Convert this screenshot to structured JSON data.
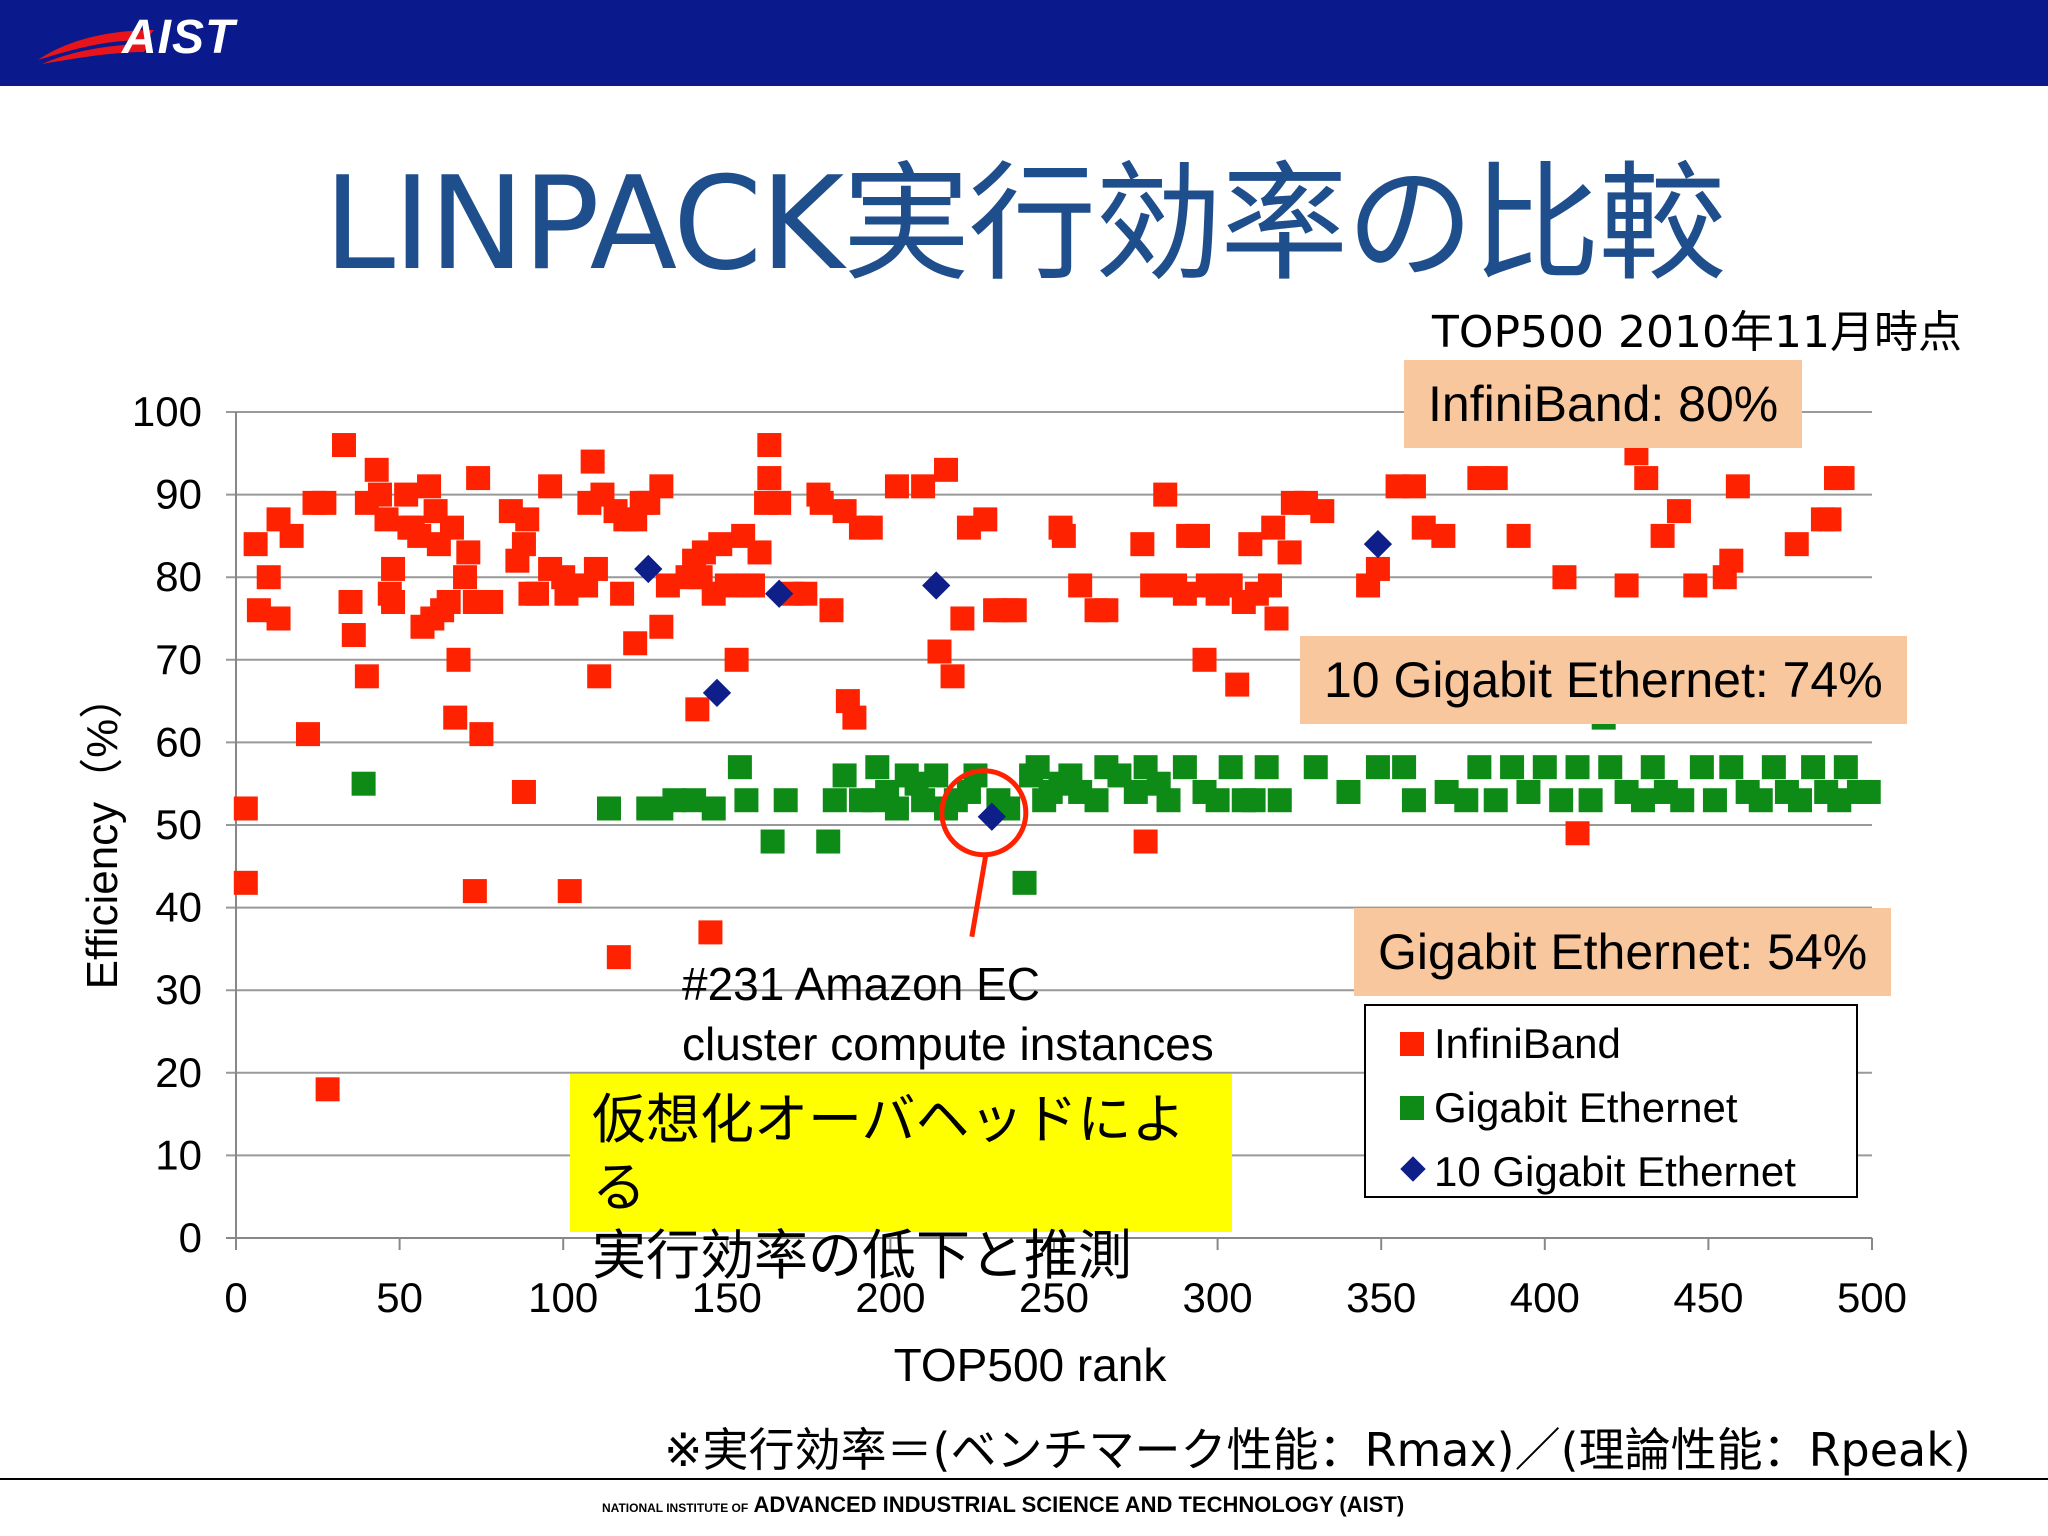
{
  "header": {
    "logo_text": "AIST"
  },
  "slide": {
    "title": "LINPACK実行効率の比較",
    "subtitle": "TOP500 2010年11月時点",
    "callouts": {
      "infiniband": "InfiniBand: 80%",
      "tengig": "10 Gigabit Ethernet: 74%",
      "gige": "Gigabit Ethernet: 54%"
    },
    "amazon_note": [
      "#231 Amazon EC",
      "cluster compute instances"
    ],
    "highlight": [
      "仮想化オーバヘッドによる",
      "実行効率の低下と推測"
    ],
    "footnote": "※実行効率＝(ベンチマーク性能：Rmax)／(理論性能：Rpeak)",
    "footer_small": "NATIONAL INSTITUTE OF",
    "footer_main": "ADVANCED INDUSTRIAL SCIENCE AND TECHNOLOGY (AIST)"
  },
  "colors": {
    "infiniband": "#ff2200",
    "gige": "#0e8a16",
    "tengig": "#0e1f8a",
    "header": "#0a1a8c",
    "callout": "#f9c79d",
    "highlight": "#ffff00"
  },
  "chart_data": {
    "type": "scatter",
    "xlabel": "TOP500 rank",
    "ylabel": "Efficiency（%）",
    "xlim": [
      0,
      500
    ],
    "ylim": [
      0,
      100
    ],
    "xticks": [
      0,
      50,
      100,
      150,
      200,
      250,
      300,
      350,
      400,
      450,
      500
    ],
    "yticks": [
      0,
      10,
      20,
      30,
      40,
      50,
      60,
      70,
      80,
      90,
      100
    ],
    "grid": "horizontal",
    "legend_position": "bottom-right",
    "series": [
      {
        "name": "InfiniBand",
        "marker": "square",
        "points": [
          [
            3,
            52
          ],
          [
            3,
            43
          ],
          [
            6,
            84
          ],
          [
            7,
            76
          ],
          [
            10,
            80
          ],
          [
            13,
            87
          ],
          [
            13,
            75
          ],
          [
            17,
            85
          ],
          [
            22,
            61
          ],
          [
            24,
            89
          ],
          [
            27,
            89
          ],
          [
            28,
            18
          ],
          [
            33,
            96
          ],
          [
            35,
            77
          ],
          [
            36,
            73
          ],
          [
            40,
            68
          ],
          [
            40,
            89
          ],
          [
            43,
            93
          ],
          [
            44,
            90
          ],
          [
            46,
            87
          ],
          [
            47,
            78
          ],
          [
            48,
            81
          ],
          [
            48,
            77
          ],
          [
            52,
            90
          ],
          [
            53,
            86
          ],
          [
            54,
            86
          ],
          [
            56,
            85
          ],
          [
            57,
            74
          ],
          [
            59,
            91
          ],
          [
            60,
            75
          ],
          [
            61,
            88
          ],
          [
            62,
            84
          ],
          [
            63,
            76
          ],
          [
            65,
            77
          ],
          [
            66,
            86
          ],
          [
            67,
            63
          ],
          [
            68,
            70
          ],
          [
            70,
            80
          ],
          [
            71,
            83
          ],
          [
            73,
            42
          ],
          [
            73,
            77
          ],
          [
            74,
            92
          ],
          [
            75,
            61
          ],
          [
            78,
            77
          ],
          [
            84,
            88
          ],
          [
            86,
            82
          ],
          [
            88,
            84
          ],
          [
            88,
            54
          ],
          [
            89,
            87
          ],
          [
            90,
            78
          ],
          [
            92,
            78
          ],
          [
            96,
            81
          ],
          [
            96,
            91
          ],
          [
            100,
            80
          ],
          [
            101,
            78
          ],
          [
            102,
            42
          ],
          [
            103,
            79
          ],
          [
            107,
            79
          ],
          [
            108,
            89
          ],
          [
            109,
            94
          ],
          [
            110,
            81
          ],
          [
            111,
            68
          ],
          [
            112,
            90
          ],
          [
            116,
            88
          ],
          [
            117,
            34
          ],
          [
            118,
            78
          ],
          [
            119,
            87
          ],
          [
            122,
            72
          ],
          [
            122,
            87
          ],
          [
            124,
            89
          ],
          [
            126,
            89
          ],
          [
            130,
            74
          ],
          [
            130,
            91
          ],
          [
            132,
            79
          ],
          [
            138,
            80
          ],
          [
            140,
            82
          ],
          [
            141,
            64
          ],
          [
            142,
            80
          ],
          [
            143,
            83
          ],
          [
            145,
            37
          ],
          [
            146,
            78
          ],
          [
            148,
            84
          ],
          [
            150,
            79
          ],
          [
            153,
            70
          ],
          [
            155,
            85
          ],
          [
            156,
            79
          ],
          [
            158,
            79
          ],
          [
            160,
            83
          ],
          [
            162,
            89
          ],
          [
            163,
            92
          ],
          [
            163,
            96
          ],
          [
            166,
            89
          ],
          [
            170,
            78
          ],
          [
            174,
            78
          ],
          [
            178,
            90
          ],
          [
            179,
            89
          ],
          [
            182,
            76
          ],
          [
            186,
            88
          ],
          [
            187,
            65
          ],
          [
            189,
            63
          ],
          [
            191,
            86
          ],
          [
            194,
            86
          ],
          [
            202,
            91
          ],
          [
            210,
            91
          ],
          [
            215,
            71
          ],
          [
            217,
            93
          ],
          [
            219,
            68
          ],
          [
            222,
            75
          ],
          [
            224,
            86
          ],
          [
            229,
            87
          ],
          [
            232,
            76
          ],
          [
            236,
            76
          ],
          [
            238,
            76
          ],
          [
            252,
            86
          ],
          [
            253,
            85
          ],
          [
            258,
            79
          ],
          [
            263,
            76
          ],
          [
            266,
            76
          ],
          [
            277,
            84
          ],
          [
            278,
            48
          ],
          [
            280,
            79
          ],
          [
            284,
            90
          ],
          [
            287,
            79
          ],
          [
            290,
            78
          ],
          [
            291,
            85
          ],
          [
            294,
            85
          ],
          [
            296,
            70
          ],
          [
            297,
            79
          ],
          [
            300,
            78
          ],
          [
            303,
            79
          ],
          [
            304,
            79
          ],
          [
            306,
            67
          ],
          [
            308,
            77
          ],
          [
            310,
            84
          ],
          [
            312,
            78
          ],
          [
            316,
            79
          ],
          [
            317,
            86
          ],
          [
            318,
            75
          ],
          [
            322,
            83
          ],
          [
            323,
            89
          ],
          [
            327,
            89
          ],
          [
            332,
            88
          ],
          [
            346,
            79
          ],
          [
            349,
            81
          ],
          [
            355,
            91
          ],
          [
            360,
            91
          ],
          [
            363,
            86
          ],
          [
            369,
            85
          ],
          [
            380,
            92
          ],
          [
            385,
            92
          ],
          [
            392,
            85
          ],
          [
            406,
            80
          ],
          [
            410,
            49
          ],
          [
            425,
            79
          ],
          [
            428,
            95
          ],
          [
            431,
            92
          ],
          [
            436,
            85
          ],
          [
            441,
            88
          ],
          [
            446,
            79
          ],
          [
            455,
            80
          ],
          [
            457,
            82
          ],
          [
            459,
            91
          ],
          [
            477,
            84
          ],
          [
            485,
            87
          ],
          [
            487,
            87
          ],
          [
            489,
            92
          ],
          [
            491,
            92
          ]
        ]
      },
      {
        "name": "Gigabit Ethernet",
        "marker": "square",
        "points": [
          [
            39,
            55
          ],
          [
            114,
            52
          ],
          [
            126,
            52
          ],
          [
            130,
            52
          ],
          [
            134,
            53
          ],
          [
            140,
            53
          ],
          [
            146,
            52
          ],
          [
            154,
            57
          ],
          [
            156,
            53
          ],
          [
            164,
            48
          ],
          [
            168,
            53
          ],
          [
            181,
            48
          ],
          [
            183,
            53
          ],
          [
            186,
            56
          ],
          [
            191,
            53
          ],
          [
            195,
            53
          ],
          [
            196,
            57
          ],
          [
            199,
            54
          ],
          [
            202,
            52
          ],
          [
            205,
            56
          ],
          [
            208,
            55
          ],
          [
            210,
            53
          ],
          [
            214,
            56
          ],
          [
            217,
            52
          ],
          [
            220,
            53
          ],
          [
            224,
            54
          ],
          [
            226,
            56
          ],
          [
            233,
            53
          ],
          [
            234,
            52
          ],
          [
            236,
            52
          ],
          [
            241,
            43
          ],
          [
            243,
            56
          ],
          [
            245,
            57
          ],
          [
            247,
            53
          ],
          [
            249,
            54
          ],
          [
            252,
            55
          ],
          [
            255,
            56
          ],
          [
            258,
            54
          ],
          [
            263,
            53
          ],
          [
            266,
            57
          ],
          [
            270,
            56
          ],
          [
            275,
            54
          ],
          [
            278,
            57
          ],
          [
            282,
            55
          ],
          [
            285,
            53
          ],
          [
            290,
            57
          ],
          [
            296,
            54
          ],
          [
            300,
            53
          ],
          [
            304,
            57
          ],
          [
            308,
            53
          ],
          [
            311,
            53
          ],
          [
            315,
            57
          ],
          [
            319,
            53
          ],
          [
            330,
            57
          ],
          [
            340,
            54
          ],
          [
            349,
            57
          ],
          [
            357,
            57
          ],
          [
            360,
            53
          ],
          [
            370,
            54
          ],
          [
            376,
            53
          ],
          [
            380,
            57
          ],
          [
            385,
            53
          ],
          [
            390,
            57
          ],
          [
            395,
            54
          ],
          [
            400,
            57
          ],
          [
            405,
            53
          ],
          [
            410,
            57
          ],
          [
            414,
            53
          ],
          [
            418,
            63
          ],
          [
            420,
            57
          ],
          [
            425,
            54
          ],
          [
            430,
            53
          ],
          [
            433,
            57
          ],
          [
            437,
            54
          ],
          [
            442,
            53
          ],
          [
            448,
            57
          ],
          [
            452,
            53
          ],
          [
            457,
            57
          ],
          [
            462,
            54
          ],
          [
            466,
            53
          ],
          [
            470,
            57
          ],
          [
            474,
            54
          ],
          [
            478,
            53
          ],
          [
            482,
            57
          ],
          [
            486,
            54
          ],
          [
            490,
            53
          ],
          [
            492,
            57
          ],
          [
            496,
            54
          ],
          [
            499,
            54
          ]
        ]
      },
      {
        "name": "10 Gigabit Ethernet",
        "marker": "diamond",
        "points": [
          [
            126,
            81
          ],
          [
            147,
            66
          ],
          [
            166,
            78
          ],
          [
            214,
            79
          ],
          [
            231,
            51
          ],
          [
            349,
            84
          ]
        ]
      }
    ]
  }
}
